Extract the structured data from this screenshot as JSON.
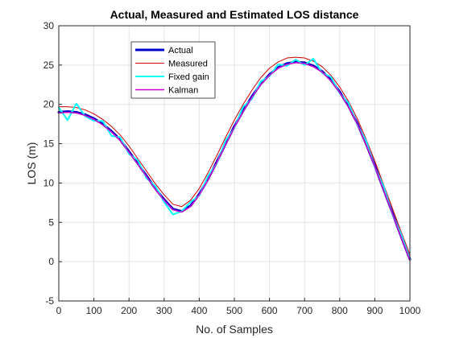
{
  "chart_data": {
    "type": "line",
    "title": "Actual, Measured and Estimated LOS distance",
    "xlabel": "No. of Samples",
    "ylabel": "LOS (m)",
    "xlim": [
      0,
      1000
    ],
    "ylim": [
      -5,
      30
    ],
    "x_ticks": [
      "0",
      "100",
      "200",
      "300",
      "400",
      "500",
      "600",
      "700",
      "800",
      "900",
      "1000"
    ],
    "y_ticks": [
      "-5",
      "0",
      "5",
      "10",
      "15",
      "20",
      "25",
      "30"
    ],
    "grid": true,
    "legend_position": "top-left",
    "series": [
      {
        "name": "Actual",
        "color": "#0000cc",
        "x": [
          0,
          25,
          50,
          75,
          100,
          125,
          150,
          175,
          200,
          225,
          250,
          275,
          300,
          325,
          350,
          375,
          400,
          425,
          450,
          475,
          500,
          525,
          550,
          575,
          600,
          625,
          650,
          675,
          700,
          725,
          750,
          775,
          800,
          825,
          850,
          875,
          900,
          925,
          950,
          975,
          1000
        ],
        "values": [
          19.0,
          19.1,
          19.0,
          18.7,
          18.2,
          17.5,
          16.6,
          15.5,
          14.0,
          12.5,
          10.9,
          9.3,
          7.9,
          6.7,
          6.4,
          7.1,
          8.6,
          10.5,
          12.7,
          15.0,
          17.2,
          19.2,
          21.0,
          22.6,
          23.8,
          24.7,
          25.2,
          25.4,
          25.3,
          24.9,
          24.2,
          23.1,
          21.6,
          19.8,
          17.6,
          15.0,
          12.2,
          9.2,
          6.2,
          3.2,
          0.3
        ]
      },
      {
        "name": "Measured",
        "color": "#cc0000",
        "x": [
          0,
          25,
          50,
          75,
          100,
          125,
          150,
          175,
          200,
          225,
          250,
          275,
          300,
          325,
          350,
          375,
          400,
          425,
          450,
          475,
          500,
          525,
          550,
          575,
          600,
          625,
          650,
          675,
          700,
          725,
          750,
          775,
          800,
          825,
          850,
          875,
          900,
          925,
          950,
          975,
          1000
        ],
        "values": [
          19.7,
          19.7,
          19.6,
          19.3,
          18.8,
          18.1,
          17.2,
          16.1,
          14.7,
          13.1,
          11.5,
          9.9,
          8.5,
          7.3,
          7.0,
          7.8,
          9.3,
          11.3,
          13.5,
          15.8,
          18.0,
          20.0,
          21.8,
          23.4,
          24.6,
          25.4,
          25.9,
          26.0,
          25.9,
          25.5,
          24.8,
          23.7,
          22.2,
          20.4,
          18.2,
          15.6,
          12.8,
          9.8,
          6.8,
          3.8,
          0.9
        ]
      },
      {
        "name": "Fixed gain",
        "color": "#00ffff",
        "x": [
          0,
          25,
          50,
          75,
          100,
          125,
          150,
          175,
          200,
          225,
          250,
          275,
          300,
          325,
          350,
          375,
          400,
          425,
          450,
          475,
          500,
          525,
          550,
          575,
          600,
          625,
          650,
          675,
          700,
          725,
          750,
          775,
          800,
          825,
          850,
          875,
          900,
          925,
          950,
          975,
          1000
        ],
        "values": [
          19.6,
          18.0,
          20.1,
          18.5,
          17.9,
          17.9,
          16.0,
          15.8,
          13.7,
          12.9,
          10.6,
          9.6,
          7.6,
          6.0,
          6.4,
          7.6,
          8.4,
          10.9,
          12.5,
          15.4,
          17.0,
          19.7,
          20.7,
          22.9,
          23.6,
          25.1,
          24.9,
          25.7,
          25.0,
          25.8,
          24.0,
          23.5,
          21.4,
          20.2,
          17.4,
          15.4,
          12.0,
          9.6,
          6.0,
          3.5,
          0.3
        ]
      },
      {
        "name": "Kalman",
        "color": "#cc00cc",
        "x": [
          0,
          25,
          50,
          75,
          100,
          125,
          150,
          175,
          200,
          225,
          250,
          275,
          300,
          325,
          350,
          375,
          400,
          425,
          450,
          475,
          500,
          525,
          550,
          575,
          600,
          625,
          650,
          675,
          700,
          725,
          750,
          775,
          800,
          825,
          850,
          875,
          900,
          925,
          950,
          975,
          1000
        ],
        "values": [
          18.9,
          19.0,
          18.9,
          18.6,
          18.1,
          17.4,
          16.5,
          15.4,
          13.9,
          12.4,
          10.8,
          9.2,
          7.8,
          6.6,
          6.3,
          7.0,
          8.5,
          10.4,
          12.6,
          14.9,
          17.1,
          19.1,
          20.9,
          22.5,
          23.7,
          24.6,
          25.1,
          25.3,
          25.2,
          24.8,
          24.1,
          23.0,
          21.5,
          19.7,
          17.5,
          14.9,
          12.1,
          9.1,
          6.1,
          3.1,
          0.2
        ]
      }
    ]
  }
}
